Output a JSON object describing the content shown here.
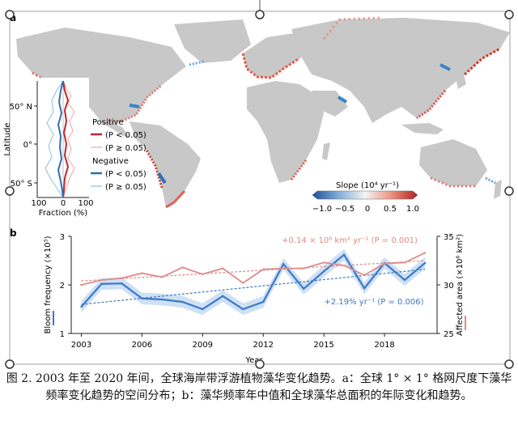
{
  "panel_a": {
    "label": "a",
    "inset": {
      "ylabel": "Latitude",
      "yticks": [
        "50° N",
        "0°",
        "50° S"
      ],
      "xticks": [
        "100",
        "0",
        "100"
      ],
      "xlabel": "Fraction (%)"
    },
    "legend": {
      "positive_title": "Positive",
      "positive_sig": "(P < 0.05)",
      "positive_ns": "(P ≥ 0.05)",
      "negative_title": "Negative",
      "negative_sig": "(P < 0.05)",
      "negative_ns": "(P ≥ 0.05)"
    },
    "colorbar": {
      "title": "Slope (10⁴ yr⁻¹)",
      "ticks": [
        "−1.0",
        "−0.5",
        "0",
        "0.5",
        "1.0"
      ]
    },
    "colors": {
      "land": "#c8c8c8",
      "positive": "#c0272d",
      "negative": "#2e6fb7"
    }
  },
  "chart_data": {
    "type": "line",
    "panel_label": "b",
    "x": [
      2003,
      2004,
      2005,
      2006,
      2007,
      2008,
      2009,
      2010,
      2011,
      2012,
      2013,
      2014,
      2015,
      2016,
      2017,
      2018,
      2019,
      2020
    ],
    "xticks": [
      "2003",
      "2006",
      "2009",
      "2012",
      "2015",
      "2018"
    ],
    "xlabel": "Year",
    "xlim": [
      2002.5,
      2020.6
    ],
    "series": [
      {
        "name": "Bloom frequency (×10⁵)",
        "axis": "left",
        "color": "#3a78c9",
        "values": [
          1.55,
          2.02,
          2.03,
          1.72,
          1.7,
          1.65,
          1.5,
          1.77,
          1.5,
          1.65,
          2.43,
          1.92,
          2.28,
          2.62,
          1.93,
          2.45,
          2.1,
          2.45
        ],
        "trend_label": "+2.19% yr⁻¹ (P = 0.006)"
      },
      {
        "name": "Affected area (×10⁶ km²)",
        "axis": "right",
        "color": "#e08a8a",
        "values": [
          30.0,
          30.5,
          30.7,
          31.2,
          30.8,
          31.8,
          31.1,
          31.7,
          30.2,
          31.6,
          31.7,
          31.7,
          32.3,
          32.0,
          31.0,
          32.2,
          32.3,
          33.3
        ],
        "trend_label": "+0.14 × 10⁶ km² yr⁻¹ (P = 0.001)"
      }
    ],
    "ylabel_left": "Bloom frequency (×10⁵)",
    "ylim_left": [
      1,
      3
    ],
    "yticks_left": [
      "1",
      "2",
      "3"
    ],
    "ylabel_right": "Affected area (×10⁶ km²)",
    "ylim_right": [
      25,
      35
    ],
    "yticks_right": [
      "25",
      "30",
      "35"
    ]
  },
  "caption": "图 2. 2003 年至 2020 年间，全球海岸带浮游植物藻华变化趋势。a：全球 1° × 1° 格网尺度下藻华频率变化趋势的空间分布；b：藻华频率年中值和全球藻华总面积的年际变化和趋势。"
}
